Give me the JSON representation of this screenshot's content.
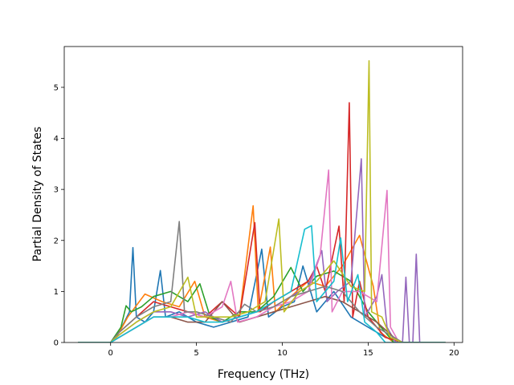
{
  "chart_data": {
    "type": "line",
    "title": "",
    "xlabel": "Frequency (THz)",
    "ylabel": "Partial Density of States",
    "xlim": [
      -2.7,
      20.5
    ],
    "ylim": [
      0,
      5.8
    ],
    "xticks": [
      0,
      5,
      10,
      15,
      20
    ],
    "yticks": [
      0,
      1,
      2,
      3,
      4,
      5
    ],
    "grid": false,
    "legend": "none",
    "colors": [
      "#1f77b4",
      "#ff7f0e",
      "#2ca02c",
      "#d62728",
      "#9467bd",
      "#8c564b",
      "#e377c2",
      "#7f7f7f",
      "#bcbd22",
      "#17becf"
    ],
    "series": [
      {
        "color": "#1f77b4",
        "points": [
          [
            -1.9,
            0
          ],
          [
            0,
            0
          ],
          [
            0.4,
            0.15
          ],
          [
            0.8,
            0.4
          ],
          [
            1.1,
            0.6
          ],
          [
            1.3,
            1.86
          ],
          [
            1.5,
            0.5
          ],
          [
            2.0,
            0.4
          ],
          [
            2.5,
            0.6
          ],
          [
            2.9,
            1.41
          ],
          [
            3.2,
            0.5
          ],
          [
            4.0,
            0.6
          ],
          [
            5.0,
            0.4
          ],
          [
            6.0,
            0.3
          ],
          [
            7.0,
            0.4
          ],
          [
            8.0,
            0.5
          ],
          [
            8.8,
            1.83
          ],
          [
            9.2,
            0.5
          ],
          [
            10.0,
            0.7
          ],
          [
            10.7,
            0.8
          ],
          [
            11.2,
            1.5
          ],
          [
            12.0,
            0.6
          ],
          [
            13.0,
            1.0
          ],
          [
            14.0,
            0.5
          ],
          [
            15.0,
            0.3
          ],
          [
            16.0,
            0.1
          ],
          [
            17.0,
            0
          ],
          [
            19.5,
            0
          ]
        ]
      },
      {
        "color": "#ff7f0e",
        "points": [
          [
            -1.9,
            0
          ],
          [
            0,
            0
          ],
          [
            0.5,
            0.2
          ],
          [
            1.0,
            0.5
          ],
          [
            2.0,
            0.95
          ],
          [
            3.0,
            0.8
          ],
          [
            4.0,
            0.7
          ],
          [
            4.9,
            1.2
          ],
          [
            5.5,
            0.5
          ],
          [
            6.5,
            0.4
          ],
          [
            7.5,
            0.5
          ],
          [
            8.3,
            2.68
          ],
          [
            8.6,
            0.6
          ],
          [
            9.3,
            1.87
          ],
          [
            9.6,
            0.6
          ],
          [
            10.5,
            0.9
          ],
          [
            11.5,
            1.2
          ],
          [
            12.5,
            1.1
          ],
          [
            13.5,
            1.5
          ],
          [
            14.5,
            2.1
          ],
          [
            15.3,
            1.1
          ],
          [
            15.7,
            0.2
          ],
          [
            16.5,
            0
          ],
          [
            19.5,
            0
          ]
        ]
      },
      {
        "color": "#2ca02c",
        "points": [
          [
            -1.9,
            0
          ],
          [
            0,
            0
          ],
          [
            0.6,
            0.3
          ],
          [
            0.9,
            0.72
          ],
          [
            1.2,
            0.6
          ],
          [
            1.8,
            0.7
          ],
          [
            2.5,
            0.9
          ],
          [
            3.5,
            1.0
          ],
          [
            4.5,
            0.8
          ],
          [
            5.2,
            1.15
          ],
          [
            5.8,
            0.5
          ],
          [
            6.5,
            0.4
          ],
          [
            7.5,
            0.6
          ],
          [
            8.5,
            0.6
          ],
          [
            9.5,
            0.9
          ],
          [
            10.5,
            1.47
          ],
          [
            11.2,
            1.0
          ],
          [
            12.0,
            1.3
          ],
          [
            13.0,
            1.4
          ],
          [
            14.0,
            1.2
          ],
          [
            15.0,
            0.6
          ],
          [
            16.0,
            0.2
          ],
          [
            16.5,
            0
          ],
          [
            19.5,
            0
          ]
        ]
      },
      {
        "color": "#d62728",
        "points": [
          [
            -1.9,
            0
          ],
          [
            0,
            0
          ],
          [
            0.5,
            0.2
          ],
          [
            1.5,
            0.5
          ],
          [
            2.5,
            0.8
          ],
          [
            3.5,
            0.7
          ],
          [
            4.5,
            0.6
          ],
          [
            5.5,
            0.5
          ],
          [
            6.5,
            0.8
          ],
          [
            7.5,
            0.5
          ],
          [
            8.4,
            2.35
          ],
          [
            8.7,
            0.6
          ],
          [
            9.5,
            0.8
          ],
          [
            10.5,
            1.0
          ],
          [
            11.5,
            1.2
          ],
          [
            12.0,
            1.5
          ],
          [
            12.5,
            1.0
          ],
          [
            13.3,
            2.28
          ],
          [
            13.6,
            0.8
          ],
          [
            13.9,
            4.7
          ],
          [
            14.1,
            0.5
          ],
          [
            14.5,
            1.2
          ],
          [
            15.0,
            0.5
          ],
          [
            16.0,
            0.1
          ],
          [
            17.0,
            0
          ],
          [
            19.5,
            0
          ]
        ]
      },
      {
        "color": "#9467bd",
        "points": [
          [
            -1.9,
            0
          ],
          [
            0,
            0
          ],
          [
            0.5,
            0.15
          ],
          [
            1.5,
            0.4
          ],
          [
            2.5,
            0.6
          ],
          [
            3.5,
            0.6
          ],
          [
            4.5,
            0.5
          ],
          [
            5.5,
            0.6
          ],
          [
            6.5,
            0.4
          ],
          [
            7.5,
            0.5
          ],
          [
            8.5,
            0.6
          ],
          [
            9.5,
            0.7
          ],
          [
            10.5,
            0.9
          ],
          [
            11.5,
            1.1
          ],
          [
            12.3,
            1.8
          ],
          [
            12.6,
            0.8
          ],
          [
            13.2,
            1.0
          ],
          [
            14.0,
            1.2
          ],
          [
            14.6,
            3.6
          ],
          [
            14.8,
            0.5
          ],
          [
            15.5,
            0.9
          ],
          [
            15.8,
            1.33
          ],
          [
            16.1,
            0.3
          ],
          [
            16.6,
            0
          ],
          [
            17.0,
            0
          ],
          [
            17.2,
            1.28
          ],
          [
            17.4,
            0
          ],
          [
            17.6,
            0
          ],
          [
            17.8,
            1.73
          ],
          [
            18.0,
            0
          ],
          [
            19.5,
            0
          ]
        ]
      },
      {
        "color": "#8c564b",
        "points": [
          [
            -1.9,
            0
          ],
          [
            0,
            0
          ],
          [
            0.5,
            0.1
          ],
          [
            1.5,
            0.3
          ],
          [
            2.5,
            0.5
          ],
          [
            3.5,
            0.5
          ],
          [
            4.5,
            0.4
          ],
          [
            5.5,
            0.4
          ],
          [
            6.5,
            0.8
          ],
          [
            7.5,
            0.4
          ],
          [
            8.5,
            0.5
          ],
          [
            9.5,
            0.6
          ],
          [
            10.5,
            0.7
          ],
          [
            11.5,
            0.8
          ],
          [
            12.5,
            0.9
          ],
          [
            13.5,
            0.8
          ],
          [
            14.5,
            0.6
          ],
          [
            15.5,
            0.4
          ],
          [
            16.5,
            0.1
          ],
          [
            17.0,
            0
          ],
          [
            19.5,
            0
          ]
        ]
      },
      {
        "color": "#e377c2",
        "points": [
          [
            -1.9,
            0
          ],
          [
            0,
            0
          ],
          [
            0.5,
            0.1
          ],
          [
            1.5,
            0.3
          ],
          [
            2.5,
            0.5
          ],
          [
            3.5,
            0.5
          ],
          [
            4.5,
            0.6
          ],
          [
            5.5,
            0.5
          ],
          [
            6.5,
            0.7
          ],
          [
            7.0,
            1.2
          ],
          [
            7.4,
            0.4
          ],
          [
            8.5,
            0.5
          ],
          [
            9.5,
            0.7
          ],
          [
            10.5,
            0.8
          ],
          [
            11.5,
            1.0
          ],
          [
            12.2,
            1.7
          ],
          [
            12.7,
            3.38
          ],
          [
            12.9,
            0.6
          ],
          [
            13.5,
            1.0
          ],
          [
            14.5,
            1.0
          ],
          [
            15.5,
            0.8
          ],
          [
            16.1,
            2.98
          ],
          [
            16.3,
            0.3
          ],
          [
            16.8,
            0
          ],
          [
            19.5,
            0
          ]
        ]
      },
      {
        "color": "#7f7f7f",
        "points": [
          [
            -1.9,
            0
          ],
          [
            0,
            0
          ],
          [
            0.5,
            0.2
          ],
          [
            1.5,
            0.5
          ],
          [
            2.5,
            0.7
          ],
          [
            3.5,
            0.8
          ],
          [
            4.0,
            2.37
          ],
          [
            4.3,
            0.6
          ],
          [
            5.0,
            0.6
          ],
          [
            6.0,
            0.5
          ],
          [
            7.0,
            0.4
          ],
          [
            7.8,
            0.75
          ],
          [
            8.5,
            0.6
          ],
          [
            9.5,
            0.7
          ],
          [
            10.5,
            0.9
          ],
          [
            11.5,
            1.0
          ],
          [
            12.5,
            1.1
          ],
          [
            13.5,
            1.0
          ],
          [
            14.5,
            0.6
          ],
          [
            15.5,
            0.3
          ],
          [
            16.5,
            0.1
          ],
          [
            17.0,
            0
          ],
          [
            19.5,
            0
          ]
        ]
      },
      {
        "color": "#bcbd22",
        "points": [
          [
            -1.9,
            0
          ],
          [
            0,
            0
          ],
          [
            0.5,
            0.15
          ],
          [
            1.5,
            0.4
          ],
          [
            2.5,
            0.6
          ],
          [
            3.5,
            0.7
          ],
          [
            4.5,
            1.28
          ],
          [
            5.0,
            0.5
          ],
          [
            6.0,
            0.5
          ],
          [
            7.0,
            0.5
          ],
          [
            8.0,
            0.6
          ],
          [
            9.0,
            0.8
          ],
          [
            9.8,
            2.42
          ],
          [
            10.1,
            0.6
          ],
          [
            11.0,
            1.0
          ],
          [
            12.0,
            1.2
          ],
          [
            13.0,
            1.6
          ],
          [
            14.0,
            1.1
          ],
          [
            14.8,
            1.0
          ],
          [
            15.05,
            5.52
          ],
          [
            15.2,
            0.6
          ],
          [
            15.8,
            0.5
          ],
          [
            16.3,
            0.1
          ],
          [
            17.0,
            0
          ],
          [
            19.5,
            0
          ]
        ]
      },
      {
        "color": "#17becf",
        "points": [
          [
            -1.9,
            0
          ],
          [
            0,
            0
          ],
          [
            0.5,
            0.1
          ],
          [
            1.5,
            0.3
          ],
          [
            2.5,
            0.5
          ],
          [
            3.5,
            0.5
          ],
          [
            4.5,
            0.5
          ],
          [
            5.5,
            0.4
          ],
          [
            6.5,
            0.4
          ],
          [
            7.5,
            0.5
          ],
          [
            8.5,
            0.6
          ],
          [
            9.5,
            0.8
          ],
          [
            10.5,
            1.0
          ],
          [
            11.3,
            2.22
          ],
          [
            11.7,
            2.29
          ],
          [
            12.0,
            0.8
          ],
          [
            13.0,
            1.2
          ],
          [
            13.4,
            2.05
          ],
          [
            13.8,
            0.8
          ],
          [
            14.4,
            1.33
          ],
          [
            14.8,
            0.4
          ],
          [
            15.5,
            0.2
          ],
          [
            16.0,
            0
          ],
          [
            19.5,
            0
          ]
        ]
      }
    ]
  }
}
